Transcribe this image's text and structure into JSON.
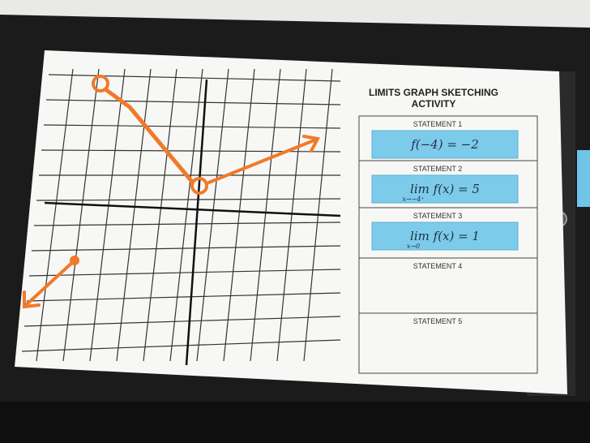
{
  "worksheet": {
    "title_line1": "LIMITS GRAPH SKETCHING",
    "title_line2": "ACTIVITY",
    "statements": [
      {
        "label": "STATEMENT 1",
        "expr": "f(−4) = −2",
        "sub": ""
      },
      {
        "label": "STATEMENT 2",
        "expr": "lim f(x) = 5",
        "sub": "x→−4⁺"
      },
      {
        "label": "STATEMENT 3",
        "expr": "lim f(x) = 1",
        "sub": "x→0"
      },
      {
        "label": "STATEMENT 4",
        "expr": "",
        "sub": ""
      },
      {
        "label": "STATEMENT 5",
        "expr": "",
        "sub": ""
      }
    ]
  },
  "colors": {
    "ink": "#f07a2a",
    "card": "#7dcbea",
    "clipboard": "#1c1c1c",
    "paper": "#f7f7f5"
  }
}
